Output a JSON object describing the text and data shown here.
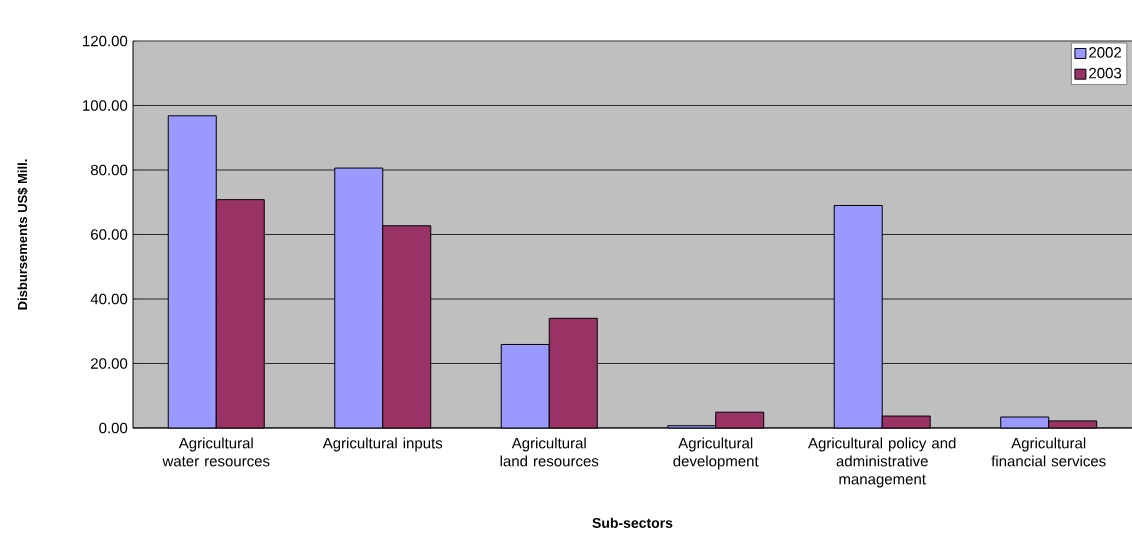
{
  "chart_data": {
    "type": "bar",
    "xlabel": "Sub-sectors",
    "ylabel": "Disbursements US$ Mill.",
    "categories": [
      "Agricultural water resources",
      "Agricultural inputs",
      "Agricultural land resources",
      "Agricultural development",
      "Agricultural policy and administrative management",
      "Agricultural financial services"
    ],
    "series": [
      {
        "name": "2002",
        "color": "#9999ff",
        "values": [
          96.8,
          80.6,
          25.9,
          0.7,
          69.0,
          3.4
        ]
      },
      {
        "name": "2003",
        "color": "#993366",
        "values": [
          70.8,
          62.7,
          34.0,
          4.9,
          3.7,
          2.2
        ]
      }
    ],
    "ylim": [
      0,
      120
    ],
    "yticks": [
      {
        "value": 0,
        "label": "0.00"
      },
      {
        "value": 20,
        "label": "20.00"
      },
      {
        "value": 40,
        "label": "40.00"
      },
      {
        "value": 60,
        "label": "60.00"
      },
      {
        "value": 80,
        "label": "80.00"
      },
      {
        "value": 100,
        "label": "100.00"
      },
      {
        "value": 120,
        "label": "120.00"
      }
    ],
    "grid": "y",
    "legend": "top right"
  }
}
